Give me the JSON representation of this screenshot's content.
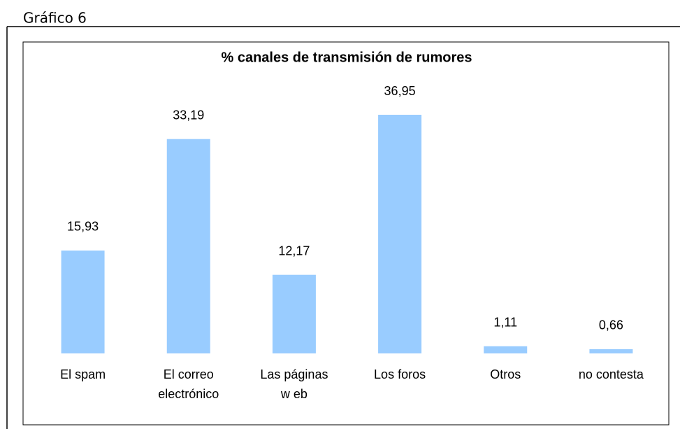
{
  "caption": "Gráfico 6",
  "chart_data": {
    "type": "bar",
    "title": "% canales de transmisión de rumores",
    "categories": [
      [
        "El spam"
      ],
      [
        "El correo",
        "electrónico"
      ],
      [
        "Las páginas",
        "w eb"
      ],
      [
        "Los foros"
      ],
      [
        "Otros"
      ],
      [
        "no contesta"
      ]
    ],
    "values": [
      15.93,
      33.19,
      12.17,
      36.95,
      1.11,
      0.66
    ],
    "value_labels": [
      "15,93",
      "33,19",
      "12,17",
      "36,95",
      "1,11",
      "0,66"
    ],
    "color": "#99ccff"
  }
}
